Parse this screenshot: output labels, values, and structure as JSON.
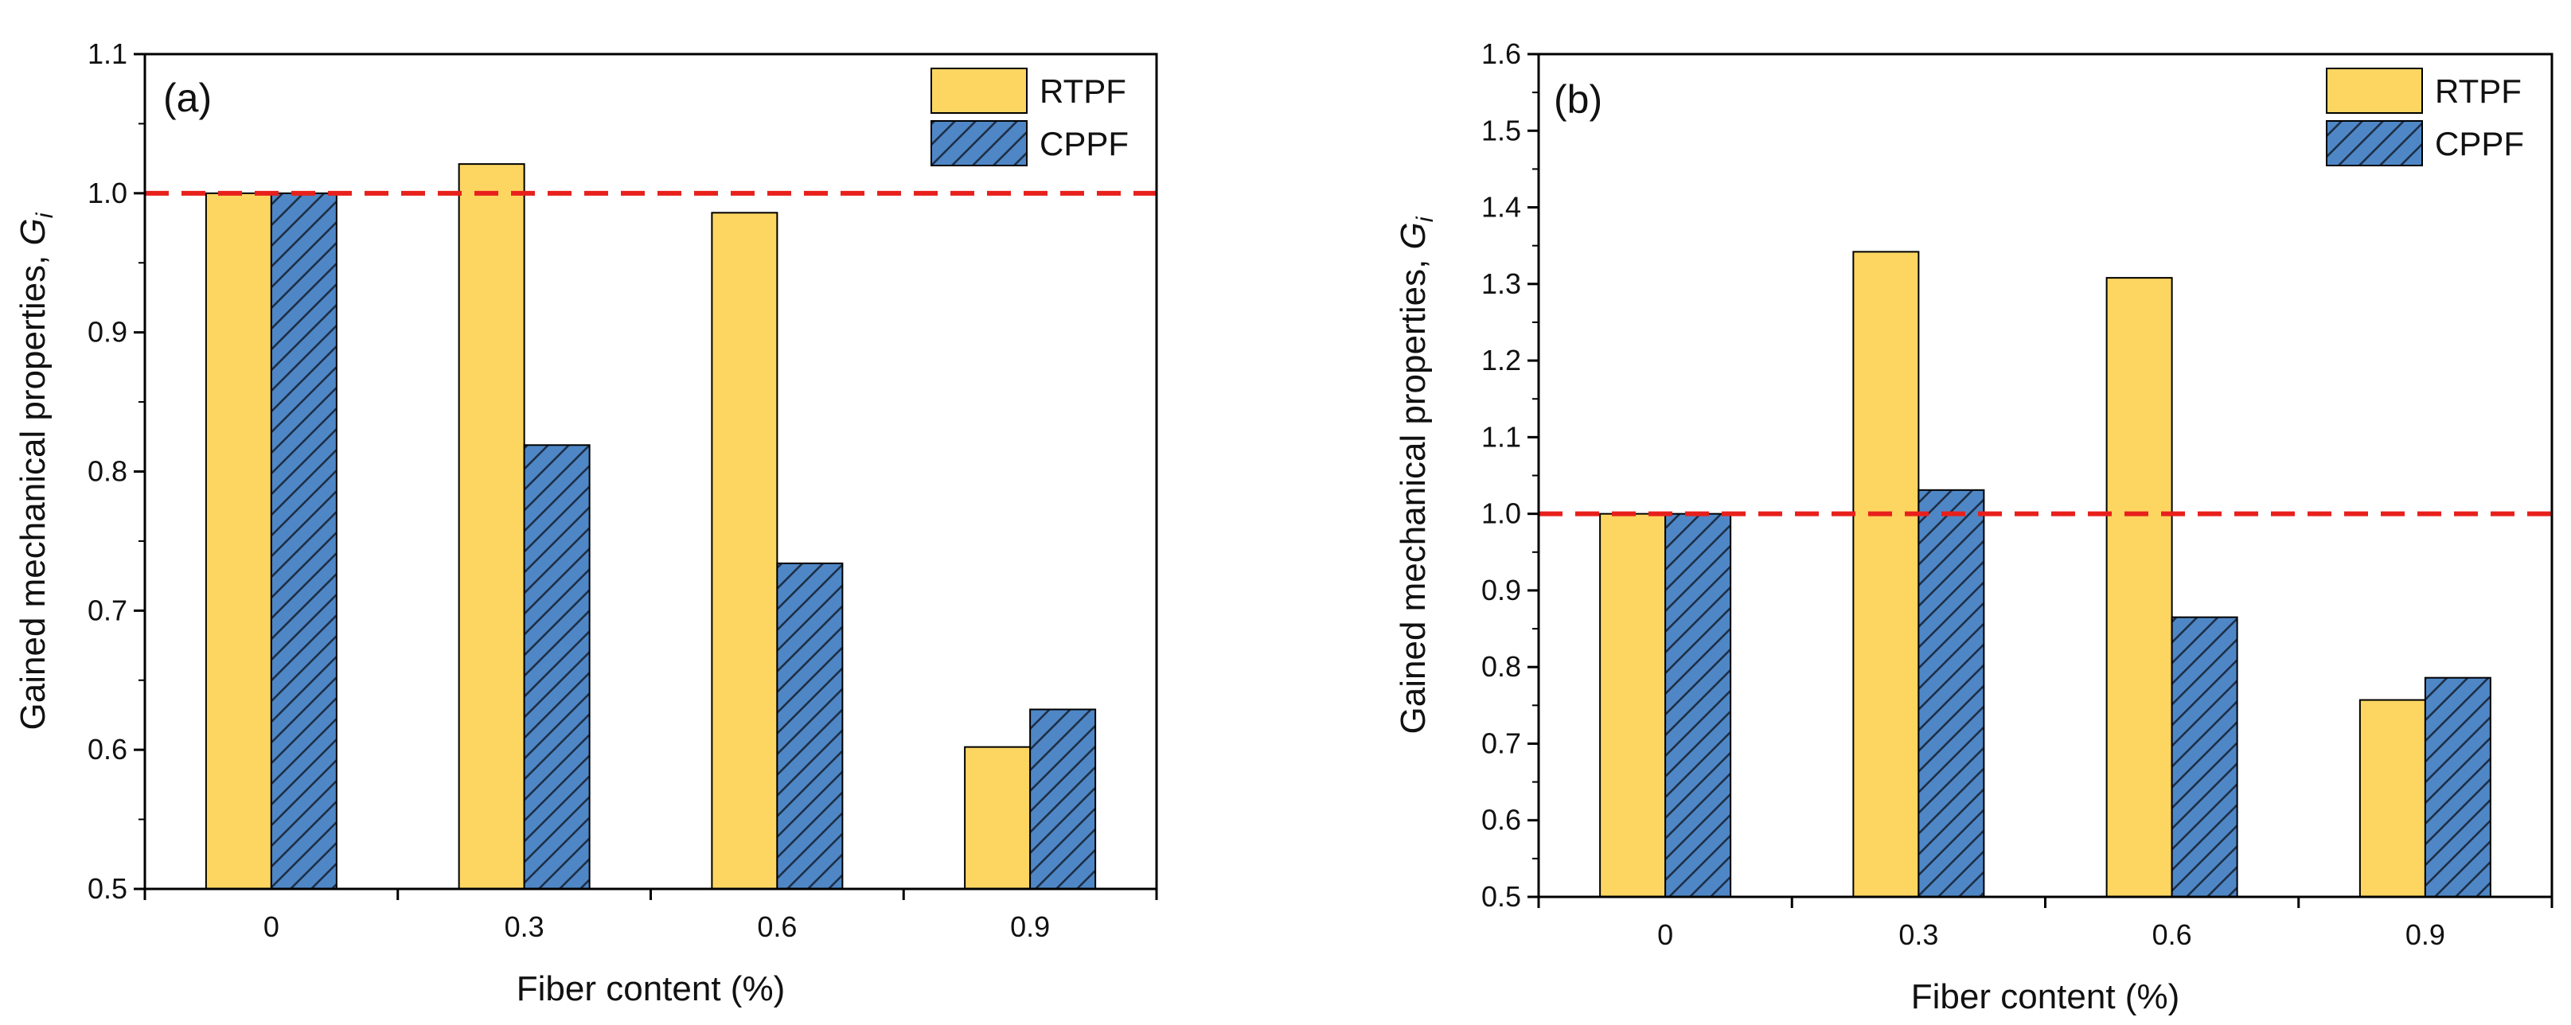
{
  "chart_data": [
    {
      "type": "bar",
      "panel_label": "(a)",
      "categories": [
        "0",
        "0.3",
        "0.6",
        "0.9"
      ],
      "series": [
        {
          "name": "RTPF",
          "values": [
            1.0,
            1.021,
            0.986,
            0.602
          ],
          "color": "#FDD662",
          "pattern": "solid"
        },
        {
          "name": "CPPF",
          "values": [
            1.0,
            0.819,
            0.734,
            0.629
          ],
          "color": "#4F87C6",
          "pattern": "diagonal-hatch"
        }
      ],
      "xlabel": "Fiber content (%)",
      "ylabel_main": "Gained mechanical properties, ",
      "ylabel_italic": "G",
      "ylabel_sub": "i",
      "ylim": [
        0.5,
        1.1
      ],
      "yticks": [
        "0.5",
        "0.6",
        "0.7",
        "0.8",
        "0.9",
        "1.0",
        "1.1"
      ],
      "reference_line": {
        "value": 1.0,
        "color": "#E8201C",
        "style": "dashed"
      },
      "legend_placement": "top-right",
      "grid": false
    },
    {
      "type": "bar",
      "panel_label": "(b)",
      "categories": [
        "0",
        "0.3",
        "0.6",
        "0.9"
      ],
      "series": [
        {
          "name": "RTPF",
          "values": [
            1.0,
            1.342,
            1.308,
            0.757
          ],
          "color": "#FDD662",
          "pattern": "solid"
        },
        {
          "name": "CPPF",
          "values": [
            1.0,
            1.031,
            0.865,
            0.786
          ],
          "color": "#4F87C6",
          "pattern": "diagonal-hatch"
        }
      ],
      "xlabel": "Fiber content (%)",
      "ylabel_main": "Gained mechanical properties, ",
      "ylabel_italic": "G",
      "ylabel_sub": "i",
      "ylim": [
        0.5,
        1.6
      ],
      "yticks": [
        "0.5",
        "0.6",
        "0.7",
        "0.8",
        "0.9",
        "1.0",
        "1.1",
        "1.2",
        "1.3",
        "1.4",
        "1.5",
        "1.6"
      ],
      "reference_line": {
        "value": 1.0,
        "color": "#E8201C",
        "style": "dashed"
      },
      "legend_placement": "top-right",
      "grid": false
    }
  ]
}
